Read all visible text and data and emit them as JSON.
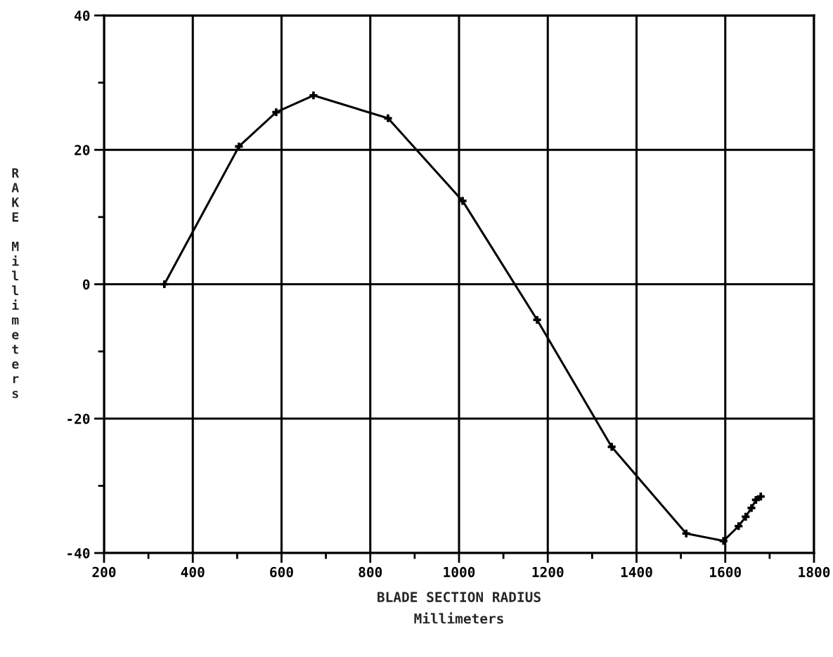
{
  "chart_data": {
    "type": "line",
    "xlabel": "BLADE SECTION RADIUS\nMillimeters",
    "ylabel": "RAKE Millimeters",
    "series": [
      {
        "color": "#000000",
        "x": [
          336,
          504,
          588,
          672,
          840,
          1008,
          1176,
          1344,
          1512,
          1596,
          1630,
          1646,
          1659,
          1669,
          1680
        ],
        "values": [
          0,
          20.5,
          25.6,
          28.1,
          24.7,
          12.4,
          -5.3,
          -24.2,
          -37.1,
          -38.2,
          -36.0,
          -34.6,
          -33.3,
          -32.1,
          -31.6
        ]
      }
    ],
    "xlim": [
      200,
      1800
    ],
    "xticks": [
      200,
      {
        "value": 300,
        "label": null
      },
      400,
      {
        "value": 500,
        "label": null
      },
      600,
      {
        "value": 700,
        "label": null
      },
      800,
      {
        "value": 900,
        "label": null
      },
      1000,
      {
        "value": 1100,
        "label": null
      },
      1200,
      {
        "value": 1300,
        "label": null
      },
      1400,
      {
        "value": 1500,
        "label": null
      },
      1600,
      {
        "value": 1700,
        "label": null
      },
      1800
    ],
    "ylim": [
      -40,
      40
    ],
    "yticks": [
      -40,
      {
        "value": -30,
        "label": null
      },
      -20,
      {
        "value": -10,
        "label": null
      },
      0,
      {
        "value": 10,
        "label": null
      },
      20,
      {
        "value": 30,
        "label": null
      },
      40
    ],
    "grid": true,
    "marker": "cross",
    "line_style": "solid"
  }
}
